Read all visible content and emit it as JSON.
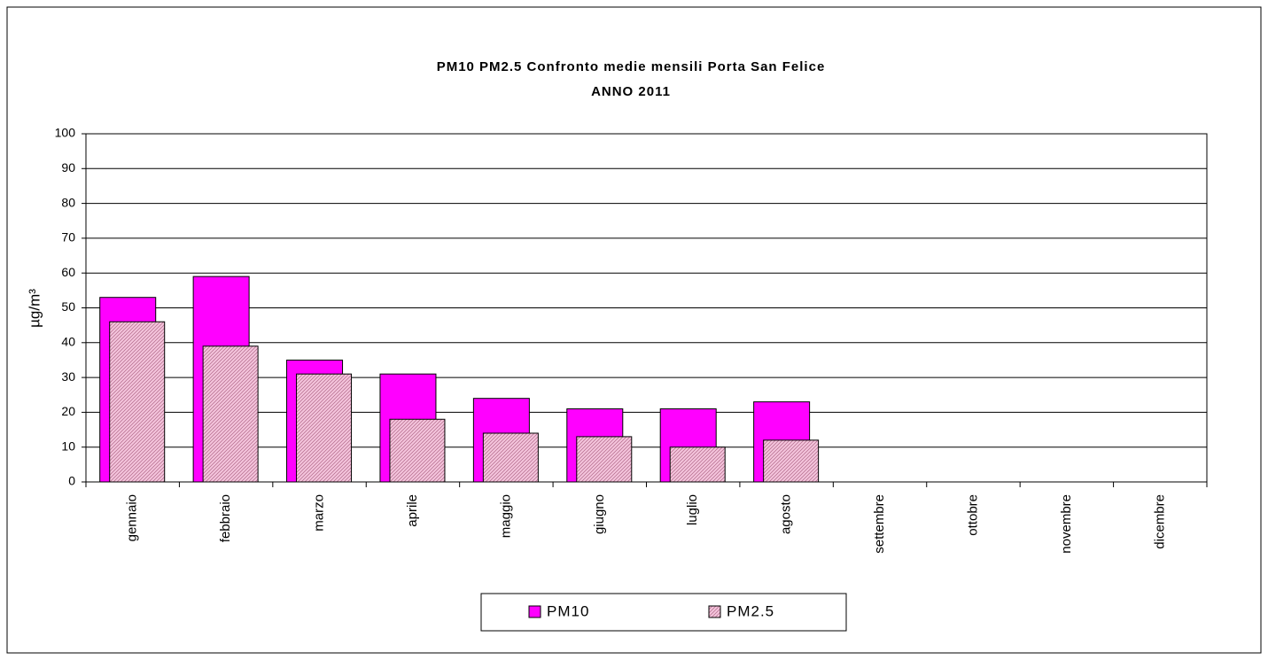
{
  "chart_data": {
    "type": "bar",
    "title": "PM10 PM2.5 Confronto medie mensili Porta San Felice",
    "subtitle": "ANNO 2011",
    "ylabel": "µg/m³",
    "categories": [
      "gennaio",
      "febbraio",
      "marzo",
      "aprile",
      "maggio",
      "giugno",
      "luglio",
      "agosto",
      "settembre",
      "ottobre",
      "novembre",
      "dicembre"
    ],
    "series": [
      {
        "name": "PM10",
        "color": "#ff00ff",
        "values": [
          53,
          59,
          35,
          31,
          24,
          21,
          21,
          23,
          null,
          null,
          null,
          null
        ]
      },
      {
        "name": "PM2.5",
        "color": "#f4c4dc",
        "values": [
          46,
          39,
          31,
          18,
          14,
          13,
          10,
          12,
          null,
          null,
          null,
          null
        ]
      }
    ],
    "ylim": [
      0,
      100
    ],
    "yticks": [
      0,
      10,
      20,
      30,
      40,
      50,
      60,
      70,
      80,
      90,
      100
    ],
    "grid": true,
    "legend": "bottom"
  }
}
